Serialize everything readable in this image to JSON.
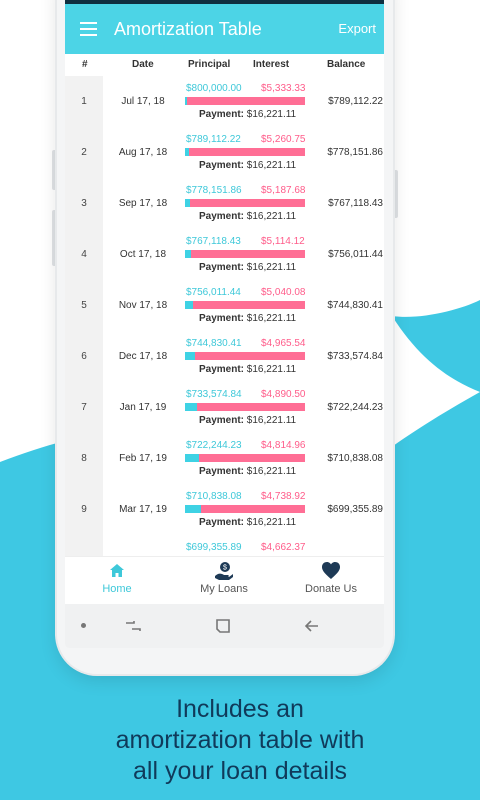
{
  "app_bar": {
    "title": "Amortization Table",
    "export_label": "Export",
    "color": "#4cd4e6"
  },
  "table": {
    "headers": {
      "num": "#",
      "date": "Date",
      "principal": "Principal",
      "interest": "Interest",
      "balance": "Balance"
    },
    "payment_label": "Payment:",
    "rows": [
      {
        "num": "1",
        "date": "Jul 17, 18",
        "principal": "$800,000.00",
        "interest": "$5,333.33",
        "payment": "$16,221.11",
        "balance": "$789,112.22",
        "principal_share": 0.02
      },
      {
        "num": "2",
        "date": "Aug 17, 18",
        "principal": "$789,112.22",
        "interest": "$5,260.75",
        "payment": "$16,221.11",
        "balance": "$778,151.86",
        "principal_share": 0.03
      },
      {
        "num": "3",
        "date": "Sep 17, 18",
        "principal": "$778,151.86",
        "interest": "$5,187.68",
        "payment": "$16,221.11",
        "balance": "$767,118.43",
        "principal_share": 0.04
      },
      {
        "num": "4",
        "date": "Oct 17, 18",
        "principal": "$767,118.43",
        "interest": "$5,114.12",
        "payment": "$16,221.11",
        "balance": "$756,011.44",
        "principal_share": 0.05
      },
      {
        "num": "5",
        "date": "Nov 17, 18",
        "principal": "$756,011.44",
        "interest": "$5,040.08",
        "payment": "$16,221.11",
        "balance": "$744,830.41",
        "principal_share": 0.07
      },
      {
        "num": "6",
        "date": "Dec 17, 18",
        "principal": "$744,830.41",
        "interest": "$4,965.54",
        "payment": "$16,221.11",
        "balance": "$733,574.84",
        "principal_share": 0.08
      },
      {
        "num": "7",
        "date": "Jan 17, 19",
        "principal": "$733,574.84",
        "interest": "$4,890.50",
        "payment": "$16,221.11",
        "balance": "$722,244.23",
        "principal_share": 0.1
      },
      {
        "num": "8",
        "date": "Feb 17, 19",
        "principal": "$722,244.23",
        "interest": "$4,814.96",
        "payment": "$16,221.11",
        "balance": "$710,838.08",
        "principal_share": 0.12
      },
      {
        "num": "9",
        "date": "Mar 17, 19",
        "principal": "$710,838.08",
        "interest": "$4,738.92",
        "payment": "$16,221.11",
        "balance": "$699,355.89",
        "principal_share": 0.13
      },
      {
        "num": "",
        "date": "",
        "principal": "$699,355.89",
        "interest": "$4,662.37",
        "payment": "",
        "balance": "",
        "principal_share": 0.15
      }
    ]
  },
  "bottom_nav": {
    "items": [
      {
        "label": "Home",
        "icon": "home-icon",
        "active": true
      },
      {
        "label": "My Loans",
        "icon": "hand-coin-icon",
        "active": false
      },
      {
        "label": "Donate Us",
        "icon": "heart-icon",
        "active": false
      }
    ]
  },
  "system_nav": {
    "icons": [
      "dot-icon",
      "recents-icon",
      "home-square-icon",
      "back-arrow-icon"
    ]
  },
  "caption": {
    "line1": "Includes an",
    "line2": "amortization table with",
    "line3": "all your loan details"
  },
  "colors": {
    "accent": "#4cd4e6",
    "principal": "#3ec8d9",
    "interest": "#ff5c8a",
    "caption": "#103a5a"
  }
}
